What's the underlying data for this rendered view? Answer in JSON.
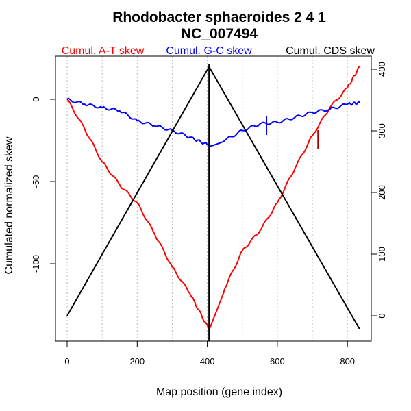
{
  "chart_data": {
    "type": "line",
    "title": "Rhodobacter sphaeroides 2 4 1",
    "subtitle": "NC_007494",
    "xlabel": "Map position (gene index)",
    "ylabel": "Cumulated normalized skew",
    "xlim": [
      -35,
      870
    ],
    "ylim_left": [
      -150,
      27
    ],
    "ylim_right": [
      -40,
      410
    ],
    "x_ticks": [
      0,
      200,
      400,
      600,
      800
    ],
    "y_ticks_left": [
      0,
      -50,
      -100
    ],
    "y_ticks_right": [
      0,
      100,
      200,
      300,
      400
    ],
    "grid_x": [
      0,
      100,
      200,
      300,
      400,
      500,
      600,
      700,
      800
    ],
    "legend": [
      "Cumul. A-T skew",
      "Cumul. G-C skew",
      "Cumul. CDS skew"
    ],
    "series": [
      {
        "name": "Cumul. A-T skew",
        "color": "#ff0000",
        "axis": "left",
        "x": [
          0,
          50,
          100,
          150,
          200,
          250,
          300,
          350,
          405,
          450,
          500,
          550,
          600,
          650,
          700,
          750,
          800,
          835
        ],
        "y": [
          0,
          -18,
          -38,
          -52,
          -63,
          -82,
          -102,
          -118,
          -140,
          -115,
          -92,
          -80,
          -63,
          -42,
          -22,
          -5,
          7,
          20
        ]
      },
      {
        "name": "Cumul. G-C skew",
        "color": "#0000ff",
        "axis": "left",
        "x": [
          0,
          50,
          100,
          150,
          200,
          250,
          300,
          350,
          405,
          450,
          500,
          550,
          600,
          650,
          700,
          750,
          800,
          835
        ],
        "y": [
          0,
          -3,
          -5,
          -7,
          -13,
          -16,
          -19,
          -23,
          -28,
          -25,
          -19,
          -15,
          -14,
          -11,
          -8,
          -6,
          -3,
          -2
        ]
      },
      {
        "name": "Cumul. CDS skew",
        "color": "#000000",
        "axis": "right",
        "x": [
          0,
          405,
          835
        ],
        "y": [
          0,
          404,
          -22
        ]
      }
    ],
    "markers": [
      {
        "name": "origin/terminus line",
        "x": 405,
        "color": "#000000"
      },
      {
        "name": "G-C tick",
        "x": 569,
        "color": "#0000ff"
      },
      {
        "name": "A-T tick",
        "x": 716,
        "color": "#b00000"
      }
    ]
  }
}
